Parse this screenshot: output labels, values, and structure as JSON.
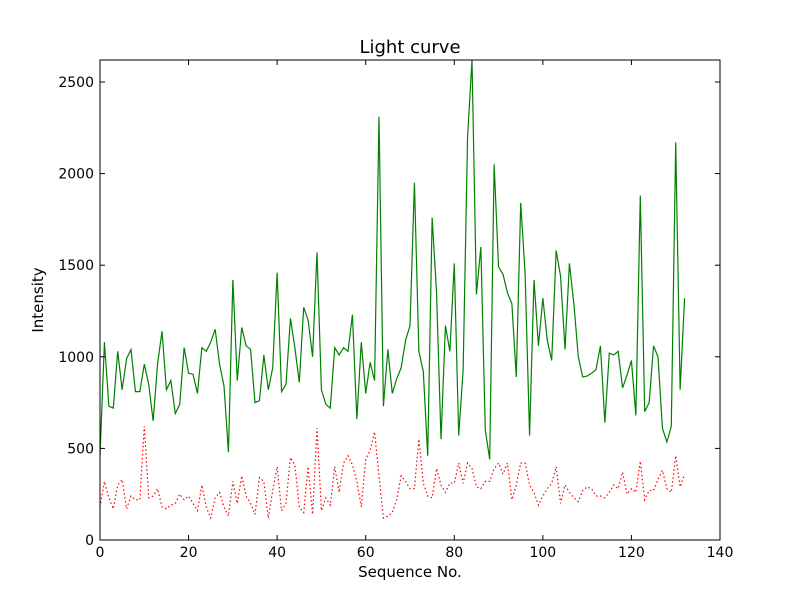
{
  "chart_data": {
    "type": "line",
    "title": "Light curve",
    "xlabel": "Sequence No.",
    "ylabel": "Intensity",
    "xlim": [
      0,
      140
    ],
    "ylim": [
      0,
      2620
    ],
    "xticks": [
      0,
      20,
      40,
      60,
      80,
      100,
      120,
      140
    ],
    "yticks": [
      0,
      500,
      1000,
      1500,
      2000,
      2500
    ],
    "grid": false,
    "legend": "none",
    "series": [
      {
        "color": "#008000",
        "linestyle": "solid",
        "x": [
          0,
          1,
          2,
          3,
          4,
          5,
          6,
          7,
          8,
          9,
          10,
          11,
          12,
          13,
          14,
          15,
          16,
          17,
          18,
          19,
          20,
          21,
          22,
          23,
          24,
          25,
          26,
          27,
          28,
          29,
          30,
          31,
          32,
          33,
          34,
          35,
          36,
          37,
          38,
          39,
          40,
          41,
          42,
          43,
          44,
          45,
          46,
          47,
          48,
          49,
          50,
          51,
          52,
          53,
          54,
          55,
          56,
          57,
          58,
          59,
          60,
          61,
          62,
          63,
          64,
          65,
          66,
          67,
          68,
          69,
          70,
          71,
          72,
          73,
          74,
          75,
          76,
          77,
          78,
          79,
          80,
          81,
          82,
          83,
          84,
          85,
          86,
          87,
          88,
          89,
          90,
          91,
          92,
          93,
          94,
          95,
          96,
          97,
          98,
          99,
          100,
          101,
          102,
          103,
          104,
          105,
          106,
          107,
          108,
          109,
          110,
          111,
          112,
          113,
          114,
          115,
          116,
          117,
          118,
          119,
          120,
          121,
          122,
          123,
          124,
          125,
          126,
          127,
          128,
          129,
          130,
          131,
          132
        ],
        "values": [
          460,
          1080,
          730,
          720,
          1030,
          820,
          990,
          1040,
          810,
          810,
          960,
          850,
          650,
          960,
          1140,
          820,
          870,
          690,
          740,
          1050,
          910,
          905,
          800,
          1050,
          1030,
          1080,
          1150,
          960,
          840,
          480,
          1420,
          870,
          1160,
          1060,
          1040,
          750,
          760,
          1010,
          820,
          940,
          1460,
          810,
          850,
          1210,
          1050,
          860,
          1270,
          1200,
          1000,
          1570,
          820,
          740,
          720,
          1050,
          1010,
          1050,
          1030,
          1230,
          660,
          1080,
          800,
          970,
          870,
          2310,
          730,
          1040,
          800,
          880,
          940,
          1090,
          1170,
          1950,
          1030,
          920,
          460,
          1760,
          1350,
          550,
          1170,
          1030,
          1510,
          570,
          930,
          2200,
          2620,
          1340,
          1600,
          600,
          440,
          2050,
          1490,
          1450,
          1350,
          1290,
          890,
          1840,
          1450,
          570,
          1420,
          1060,
          1320,
          1090,
          980,
          1580,
          1440,
          1040,
          1510,
          1290,
          1000,
          890,
          895,
          910,
          930,
          1060,
          640,
          1020,
          1010,
          1030,
          830,
          900,
          980,
          680,
          1880,
          700,
          750,
          1060,
          1000,
          610,
          535,
          620,
          2170,
          820,
          1320
        ]
      },
      {
        "color": "#ff0000",
        "linestyle": "dotted",
        "x": [
          0,
          1,
          2,
          3,
          4,
          5,
          6,
          7,
          8,
          9,
          10,
          11,
          12,
          13,
          14,
          15,
          16,
          17,
          18,
          19,
          20,
          21,
          22,
          23,
          24,
          25,
          26,
          27,
          28,
          29,
          30,
          31,
          32,
          33,
          34,
          35,
          36,
          37,
          38,
          39,
          40,
          41,
          42,
          43,
          44,
          45,
          46,
          47,
          48,
          49,
          50,
          51,
          52,
          53,
          54,
          55,
          56,
          57,
          58,
          59,
          60,
          61,
          62,
          63,
          64,
          65,
          66,
          67,
          68,
          69,
          70,
          71,
          72,
          73,
          74,
          75,
          76,
          77,
          78,
          79,
          80,
          81,
          82,
          83,
          84,
          85,
          86,
          87,
          88,
          89,
          90,
          91,
          92,
          93,
          94,
          95,
          96,
          97,
          98,
          99,
          100,
          101,
          102,
          103,
          104,
          105,
          106,
          107,
          108,
          109,
          110,
          111,
          112,
          113,
          114,
          115,
          116,
          117,
          118,
          119,
          120,
          121,
          122,
          123,
          124,
          125,
          126,
          127,
          128,
          129,
          130,
          131,
          132
        ],
        "values": [
          180,
          320,
          230,
          170,
          300,
          330,
          170,
          240,
          220,
          220,
          620,
          230,
          240,
          280,
          180,
          170,
          190,
          200,
          250,
          220,
          240,
          200,
          160,
          300,
          180,
          120,
          230,
          260,
          180,
          130,
          320,
          200,
          350,
          240,
          200,
          140,
          340,
          320,
          120,
          270,
          400,
          160,
          200,
          450,
          410,
          180,
          150,
          400,
          140,
          610,
          160,
          230,
          190,
          400,
          260,
          420,
          460,
          410,
          320,
          180,
          440,
          490,
          590,
          350,
          120,
          130,
          150,
          220,
          350,
          320,
          280,
          280,
          550,
          310,
          240,
          230,
          390,
          300,
          260,
          310,
          310,
          420,
          310,
          420,
          390,
          290,
          280,
          320,
          320,
          390,
          420,
          360,
          420,
          220,
          300,
          420,
          420,
          300,
          260,
          190,
          240,
          280,
          310,
          400,
          200,
          300,
          260,
          230,
          210,
          270,
          290,
          280,
          240,
          240,
          230,
          260,
          300,
          280,
          370,
          250,
          280,
          260,
          430,
          220,
          270,
          270,
          330,
          380,
          280,
          260,
          460,
          290,
          360
        ]
      }
    ]
  }
}
